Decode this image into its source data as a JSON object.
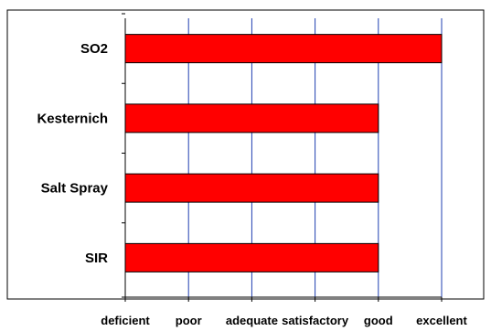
{
  "chart_data": {
    "type": "bar",
    "orientation": "horizontal",
    "categories": [
      "SO2",
      "Kesternich",
      "Salt Spray",
      "SIR"
    ],
    "values": [
      5,
      4,
      4,
      4
    ],
    "x_tick_labels": [
      "deficient",
      "poor",
      "adequate",
      "satisfactory",
      "good",
      "excellent"
    ],
    "xlim": [
      0,
      5
    ],
    "grid": true,
    "legend": "none",
    "title": "",
    "xlabel": "",
    "ylabel": "",
    "colors": {
      "bar_fill": "#ff0000",
      "bar_stroke": "#000000",
      "grid": "#1f3fb0",
      "frame": "#000000",
      "background": "#ffffff"
    }
  }
}
